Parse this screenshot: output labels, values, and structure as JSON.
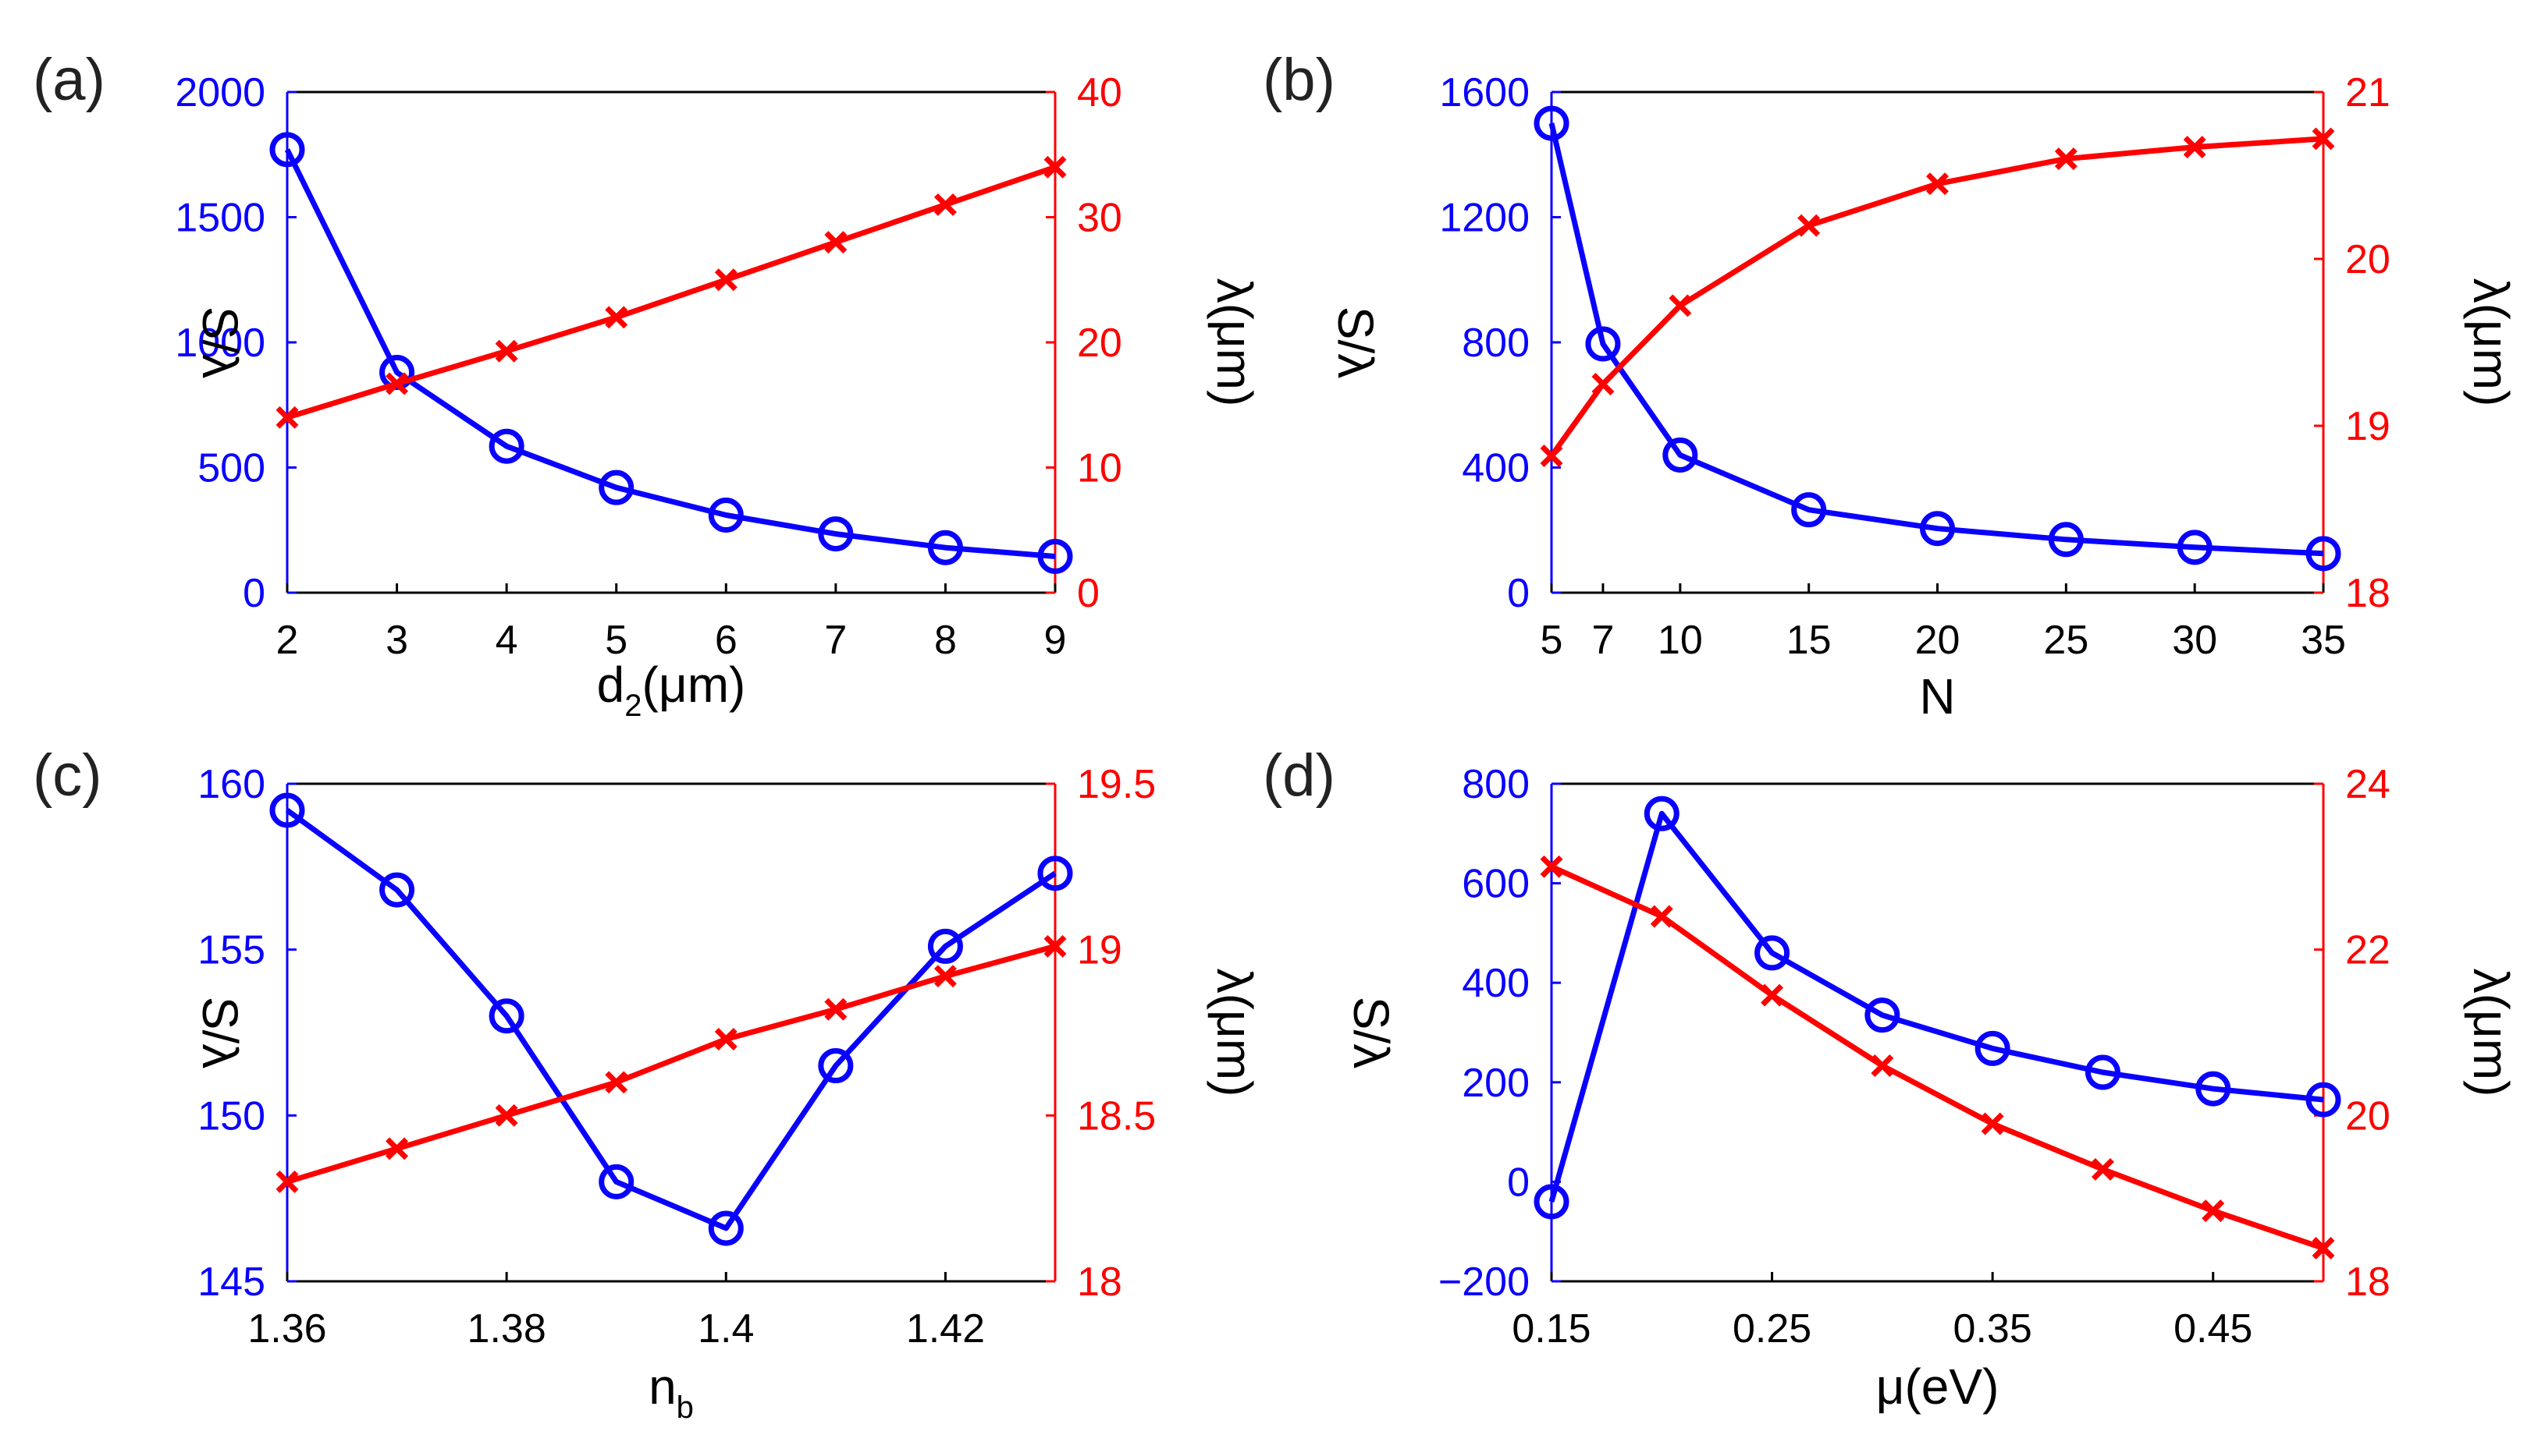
{
  "colors": {
    "left": "#0a00ff",
    "right": "#ff0000",
    "axis": "#000000"
  },
  "chart_data": [
    {
      "panel_label": "(a)",
      "type": "line",
      "x": [
        2,
        3,
        4,
        5,
        6,
        7,
        8,
        9
      ],
      "xlim": [
        2,
        9
      ],
      "xticks": [
        "2",
        "3",
        "4",
        "5",
        "6",
        "7",
        "8",
        "9"
      ],
      "xtick_values": [
        2,
        3,
        4,
        5,
        6,
        7,
        8,
        9
      ],
      "xlabel": {
        "main": "d",
        "sub": "2",
        "suffix": "(μm)"
      },
      "ylabel_left": "S/λ",
      "ylabel_right": "λ(μm)",
      "ylim_left": [
        0,
        2000
      ],
      "yticks_left": [
        "0",
        "500",
        "1000",
        "1500",
        "2000"
      ],
      "ytick_values_left": [
        0,
        500,
        1000,
        1500,
        2000
      ],
      "ylim_right": [
        0,
        40
      ],
      "yticks_right": [
        "0",
        "10",
        "20",
        "30",
        "40"
      ],
      "ytick_values_right": [
        0,
        10,
        20,
        30,
        40
      ],
      "series": [
        {
          "name": "S/λ",
          "axis": "left",
          "marker": "circle",
          "values": [
            1770,
            880,
            585,
            420,
            310,
            235,
            180,
            145
          ]
        },
        {
          "name": "λ",
          "axis": "right",
          "marker": "x",
          "values": [
            14.0,
            16.7,
            19.3,
            22.0,
            25.0,
            28.0,
            31.0,
            34.0
          ]
        }
      ]
    },
    {
      "panel_label": "(b)",
      "type": "line",
      "x": [
        5,
        7,
        10,
        15,
        20,
        25,
        30,
        35
      ],
      "xlim": [
        5,
        35
      ],
      "xticks": [
        "5",
        "7",
        "10",
        "15",
        "20",
        "25",
        "30",
        "35"
      ],
      "xtick_values": [
        5,
        7,
        10,
        15,
        20,
        25,
        30,
        35
      ],
      "xlabel": {
        "main": "N",
        "sub": "",
        "suffix": ""
      },
      "ylabel_left": "S/λ",
      "ylabel_right": "λ(μm)",
      "ylim_left": [
        0,
        1600
      ],
      "yticks_left": [
        "0",
        "400",
        "800",
        "1200",
        "1600"
      ],
      "ytick_values_left": [
        0,
        400,
        800,
        1200,
        1600
      ],
      "ylim_right": [
        18,
        21
      ],
      "yticks_right": [
        "18",
        "19",
        "20",
        "21"
      ],
      "ytick_values_right": [
        18,
        19,
        20,
        21
      ],
      "series": [
        {
          "name": "S/λ",
          "axis": "left",
          "marker": "circle",
          "values": [
            1500,
            795,
            440,
            265,
            205,
            170,
            145,
            125
          ]
        },
        {
          "name": "λ",
          "axis": "right",
          "marker": "x",
          "values": [
            18.82,
            19.25,
            19.72,
            20.2,
            20.45,
            20.6,
            20.67,
            20.72
          ]
        }
      ]
    },
    {
      "panel_label": "(c)",
      "type": "line",
      "x": [
        1.36,
        1.37,
        1.38,
        1.39,
        1.4,
        1.41,
        1.42,
        1.43
      ],
      "xlim": [
        1.36,
        1.43
      ],
      "xticks": [
        "1.36",
        "1.38",
        "1.4",
        "1.42"
      ],
      "xtick_values": [
        1.36,
        1.38,
        1.4,
        1.42
      ],
      "xlabel": {
        "main": "n",
        "sub": "b",
        "suffix": ""
      },
      "ylabel_left": "S/λ",
      "ylabel_right": "λ(μm)",
      "ylim_left": [
        145,
        160
      ],
      "yticks_left": [
        "145",
        "150",
        "155",
        "160"
      ],
      "ytick_values_left": [
        145,
        150,
        155,
        160
      ],
      "ylim_right": [
        18,
        19.5
      ],
      "yticks_right": [
        "18",
        "18.5",
        "19",
        "19.5"
      ],
      "ytick_values_right": [
        18,
        18.5,
        19,
        19.5
      ],
      "series": [
        {
          "name": "S/λ",
          "axis": "left",
          "marker": "circle",
          "values": [
            159.2,
            156.8,
            153.0,
            148.0,
            146.6,
            151.5,
            155.1,
            157.3
          ]
        },
        {
          "name": "λ",
          "axis": "right",
          "marker": "x",
          "values": [
            18.3,
            18.4,
            18.5,
            18.6,
            18.73,
            18.82,
            18.92,
            19.01
          ]
        }
      ]
    },
    {
      "panel_label": "(d)",
      "type": "line",
      "x": [
        0.15,
        0.2,
        0.25,
        0.3,
        0.35,
        0.4,
        0.45,
        0.5
      ],
      "xlim": [
        0.15,
        0.5
      ],
      "xticks": [
        "0.15",
        "0.25",
        "0.35",
        "0.45"
      ],
      "xtick_values": [
        0.15,
        0.25,
        0.35,
        0.45
      ],
      "xlabel": {
        "main": "μ(eV)",
        "sub": "",
        "suffix": ""
      },
      "ylabel_left": "S/λ",
      "ylabel_right": "λ(μm)",
      "ylim_left": [
        -200,
        800
      ],
      "yticks_left": [
        "−200",
        "0",
        "200",
        "400",
        "600",
        "800"
      ],
      "ytick_values_left": [
        -200,
        0,
        200,
        400,
        600,
        800
      ],
      "ylim_right": [
        18,
        24
      ],
      "yticks_right": [
        "18",
        "20",
        "22",
        "24"
      ],
      "ytick_values_right": [
        18,
        20,
        22,
        24
      ],
      "series": [
        {
          "name": "S/λ",
          "axis": "left",
          "marker": "circle",
          "values": [
            -40,
            740,
            460,
            335,
            268,
            220,
            187,
            165
          ]
        },
        {
          "name": "λ",
          "axis": "right",
          "marker": "x",
          "values": [
            23.0,
            22.4,
            21.45,
            20.6,
            19.9,
            19.35,
            18.85,
            18.4
          ]
        }
      ]
    }
  ]
}
